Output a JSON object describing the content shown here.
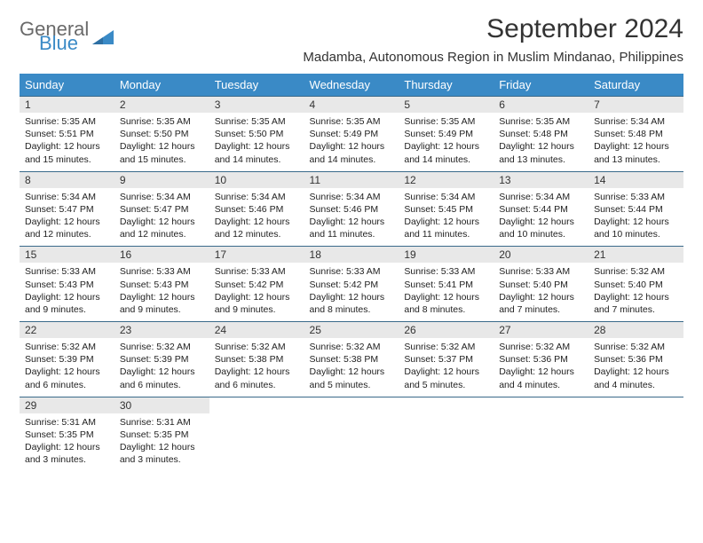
{
  "logo": {
    "text1": "General",
    "text2": "Blue",
    "shape_color": "#3a8ac6"
  },
  "title": "September 2024",
  "location": "Madamba, Autonomous Region in Muslim Mindanao, Philippines",
  "header_bg": "#3a8ac6",
  "header_fg": "#ffffff",
  "daynum_bg": "#e8e8e8",
  "divider_color": "#3a6a8a",
  "weekdays": [
    "Sunday",
    "Monday",
    "Tuesday",
    "Wednesday",
    "Thursday",
    "Friday",
    "Saturday"
  ],
  "weeks": [
    {
      "nums": [
        "1",
        "2",
        "3",
        "4",
        "5",
        "6",
        "7"
      ],
      "cells": [
        {
          "sr": "Sunrise: 5:35 AM",
          "ss": "Sunset: 5:51 PM",
          "dl1": "Daylight: 12 hours",
          "dl2": "and 15 minutes."
        },
        {
          "sr": "Sunrise: 5:35 AM",
          "ss": "Sunset: 5:50 PM",
          "dl1": "Daylight: 12 hours",
          "dl2": "and 15 minutes."
        },
        {
          "sr": "Sunrise: 5:35 AM",
          "ss": "Sunset: 5:50 PM",
          "dl1": "Daylight: 12 hours",
          "dl2": "and 14 minutes."
        },
        {
          "sr": "Sunrise: 5:35 AM",
          "ss": "Sunset: 5:49 PM",
          "dl1": "Daylight: 12 hours",
          "dl2": "and 14 minutes."
        },
        {
          "sr": "Sunrise: 5:35 AM",
          "ss": "Sunset: 5:49 PM",
          "dl1": "Daylight: 12 hours",
          "dl2": "and 14 minutes."
        },
        {
          "sr": "Sunrise: 5:35 AM",
          "ss": "Sunset: 5:48 PM",
          "dl1": "Daylight: 12 hours",
          "dl2": "and 13 minutes."
        },
        {
          "sr": "Sunrise: 5:34 AM",
          "ss": "Sunset: 5:48 PM",
          "dl1": "Daylight: 12 hours",
          "dl2": "and 13 minutes."
        }
      ]
    },
    {
      "nums": [
        "8",
        "9",
        "10",
        "11",
        "12",
        "13",
        "14"
      ],
      "cells": [
        {
          "sr": "Sunrise: 5:34 AM",
          "ss": "Sunset: 5:47 PM",
          "dl1": "Daylight: 12 hours",
          "dl2": "and 12 minutes."
        },
        {
          "sr": "Sunrise: 5:34 AM",
          "ss": "Sunset: 5:47 PM",
          "dl1": "Daylight: 12 hours",
          "dl2": "and 12 minutes."
        },
        {
          "sr": "Sunrise: 5:34 AM",
          "ss": "Sunset: 5:46 PM",
          "dl1": "Daylight: 12 hours",
          "dl2": "and 12 minutes."
        },
        {
          "sr": "Sunrise: 5:34 AM",
          "ss": "Sunset: 5:46 PM",
          "dl1": "Daylight: 12 hours",
          "dl2": "and 11 minutes."
        },
        {
          "sr": "Sunrise: 5:34 AM",
          "ss": "Sunset: 5:45 PM",
          "dl1": "Daylight: 12 hours",
          "dl2": "and 11 minutes."
        },
        {
          "sr": "Sunrise: 5:34 AM",
          "ss": "Sunset: 5:44 PM",
          "dl1": "Daylight: 12 hours",
          "dl2": "and 10 minutes."
        },
        {
          "sr": "Sunrise: 5:33 AM",
          "ss": "Sunset: 5:44 PM",
          "dl1": "Daylight: 12 hours",
          "dl2": "and 10 minutes."
        }
      ]
    },
    {
      "nums": [
        "15",
        "16",
        "17",
        "18",
        "19",
        "20",
        "21"
      ],
      "cells": [
        {
          "sr": "Sunrise: 5:33 AM",
          "ss": "Sunset: 5:43 PM",
          "dl1": "Daylight: 12 hours",
          "dl2": "and 9 minutes."
        },
        {
          "sr": "Sunrise: 5:33 AM",
          "ss": "Sunset: 5:43 PM",
          "dl1": "Daylight: 12 hours",
          "dl2": "and 9 minutes."
        },
        {
          "sr": "Sunrise: 5:33 AM",
          "ss": "Sunset: 5:42 PM",
          "dl1": "Daylight: 12 hours",
          "dl2": "and 9 minutes."
        },
        {
          "sr": "Sunrise: 5:33 AM",
          "ss": "Sunset: 5:42 PM",
          "dl1": "Daylight: 12 hours",
          "dl2": "and 8 minutes."
        },
        {
          "sr": "Sunrise: 5:33 AM",
          "ss": "Sunset: 5:41 PM",
          "dl1": "Daylight: 12 hours",
          "dl2": "and 8 minutes."
        },
        {
          "sr": "Sunrise: 5:33 AM",
          "ss": "Sunset: 5:40 PM",
          "dl1": "Daylight: 12 hours",
          "dl2": "and 7 minutes."
        },
        {
          "sr": "Sunrise: 5:32 AM",
          "ss": "Sunset: 5:40 PM",
          "dl1": "Daylight: 12 hours",
          "dl2": "and 7 minutes."
        }
      ]
    },
    {
      "nums": [
        "22",
        "23",
        "24",
        "25",
        "26",
        "27",
        "28"
      ],
      "cells": [
        {
          "sr": "Sunrise: 5:32 AM",
          "ss": "Sunset: 5:39 PM",
          "dl1": "Daylight: 12 hours",
          "dl2": "and 6 minutes."
        },
        {
          "sr": "Sunrise: 5:32 AM",
          "ss": "Sunset: 5:39 PM",
          "dl1": "Daylight: 12 hours",
          "dl2": "and 6 minutes."
        },
        {
          "sr": "Sunrise: 5:32 AM",
          "ss": "Sunset: 5:38 PM",
          "dl1": "Daylight: 12 hours",
          "dl2": "and 6 minutes."
        },
        {
          "sr": "Sunrise: 5:32 AM",
          "ss": "Sunset: 5:38 PM",
          "dl1": "Daylight: 12 hours",
          "dl2": "and 5 minutes."
        },
        {
          "sr": "Sunrise: 5:32 AM",
          "ss": "Sunset: 5:37 PM",
          "dl1": "Daylight: 12 hours",
          "dl2": "and 5 minutes."
        },
        {
          "sr": "Sunrise: 5:32 AM",
          "ss": "Sunset: 5:36 PM",
          "dl1": "Daylight: 12 hours",
          "dl2": "and 4 minutes."
        },
        {
          "sr": "Sunrise: 5:32 AM",
          "ss": "Sunset: 5:36 PM",
          "dl1": "Daylight: 12 hours",
          "dl2": "and 4 minutes."
        }
      ]
    },
    {
      "nums": [
        "29",
        "30",
        "",
        "",
        "",
        "",
        ""
      ],
      "cells": [
        {
          "sr": "Sunrise: 5:31 AM",
          "ss": "Sunset: 5:35 PM",
          "dl1": "Daylight: 12 hours",
          "dl2": "and 3 minutes."
        },
        {
          "sr": "Sunrise: 5:31 AM",
          "ss": "Sunset: 5:35 PM",
          "dl1": "Daylight: 12 hours",
          "dl2": "and 3 minutes."
        },
        null,
        null,
        null,
        null,
        null
      ]
    }
  ]
}
